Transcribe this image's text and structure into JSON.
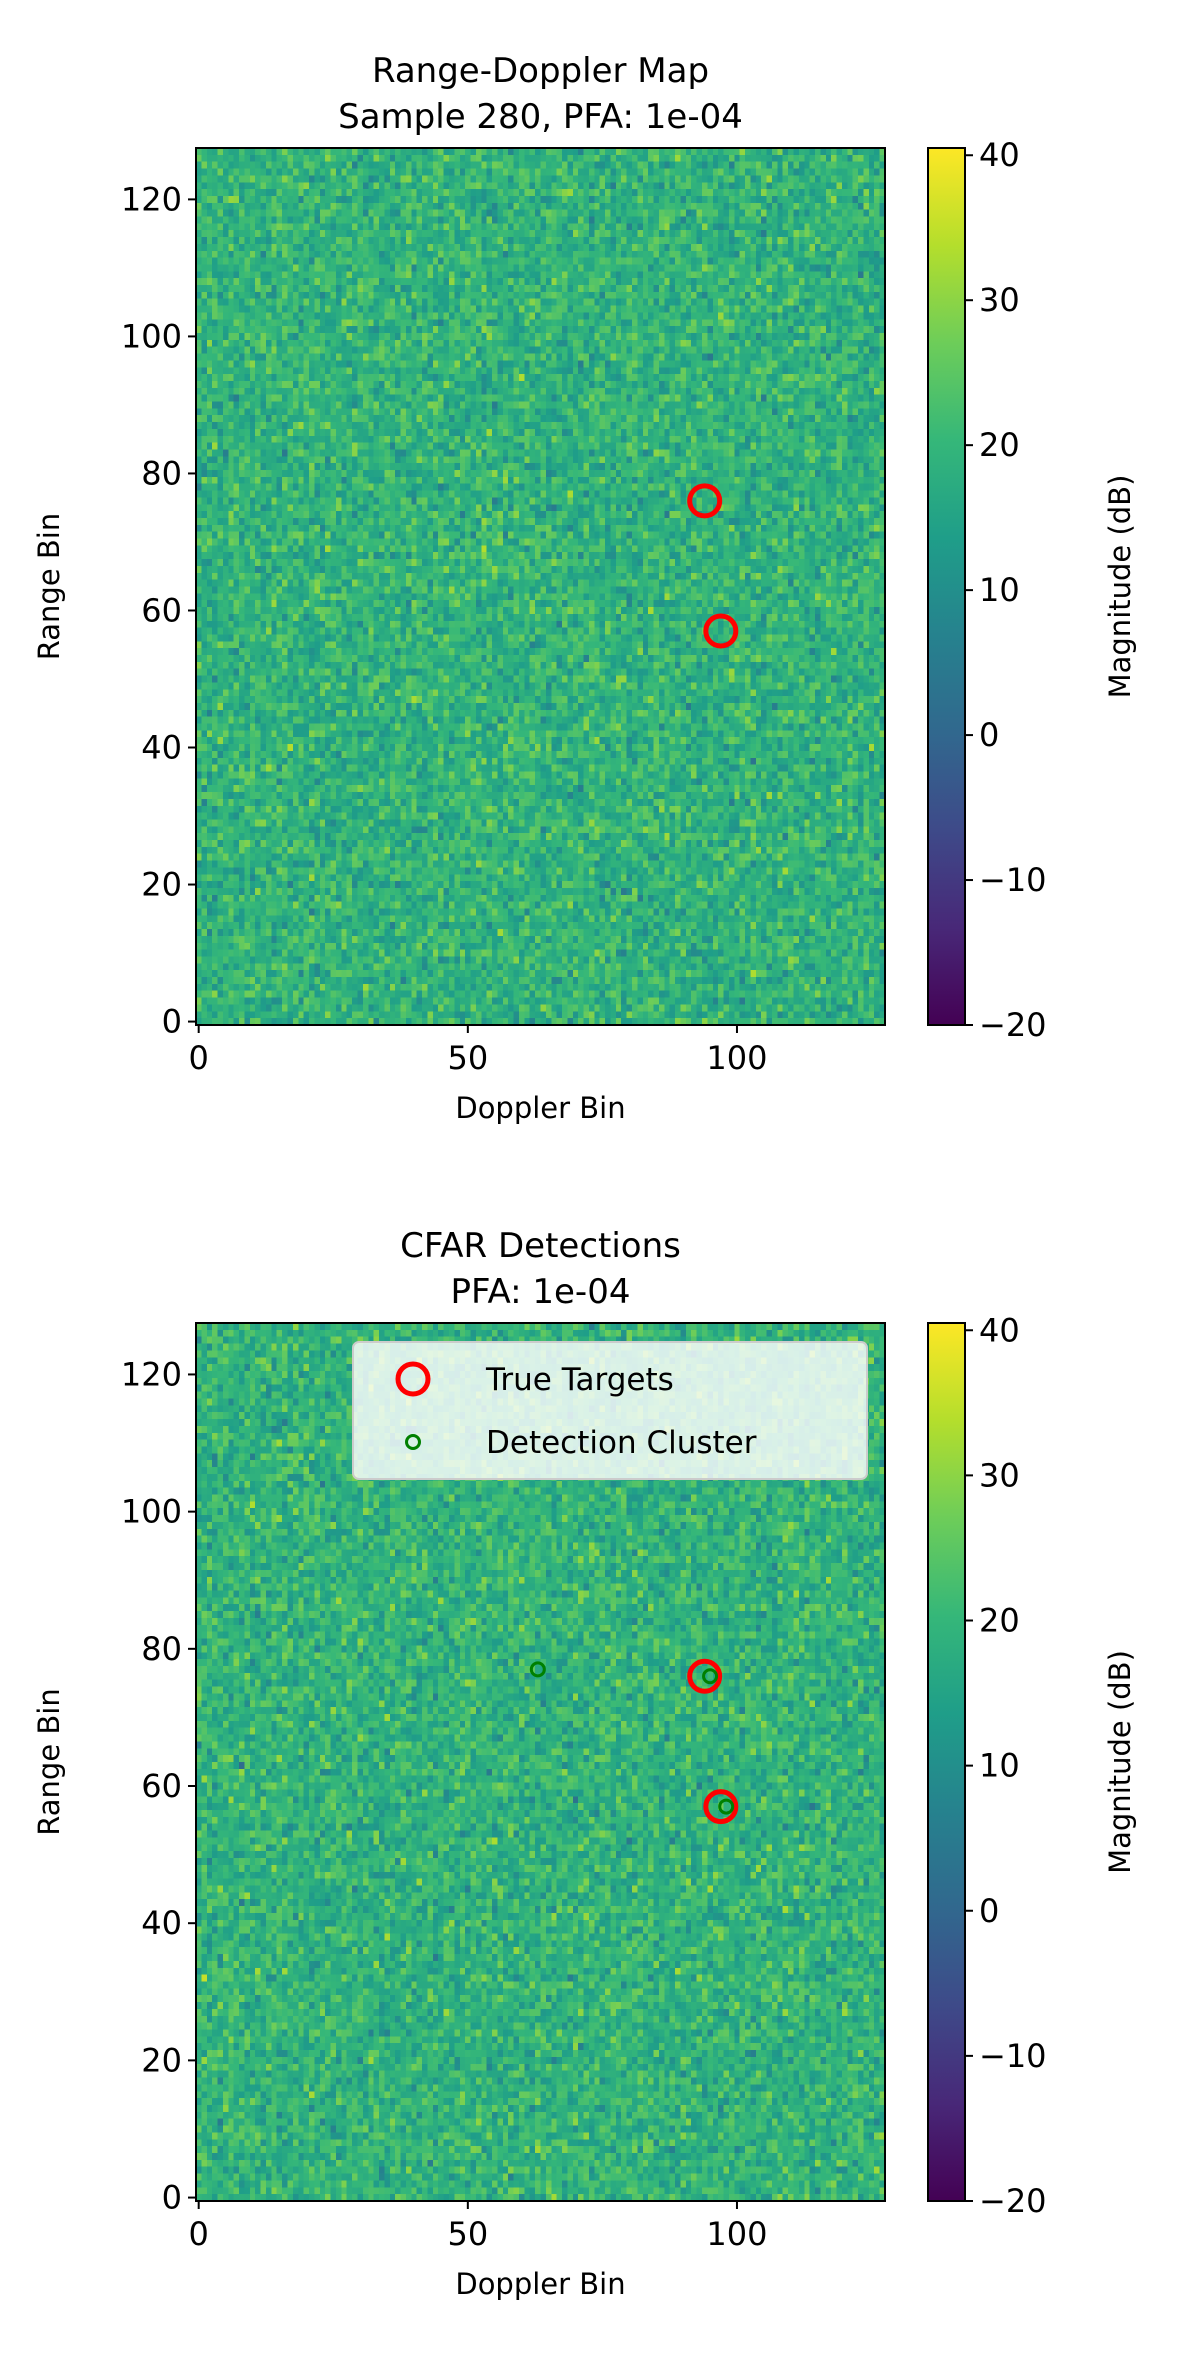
{
  "figure": {
    "colormap": "viridis",
    "colorbar": {
      "label": "Magnitude (dB)",
      "vmin": -20,
      "vmax": 40.5,
      "ticks": [
        "−20",
        "−10",
        "0",
        "10",
        "20",
        "30",
        "40"
      ]
    },
    "axis_ticks": [
      "0",
      "50",
      "100"
    ],
    "y_ticks": [
      "0",
      "20",
      "40",
      "60",
      "80",
      "100",
      "120"
    ]
  },
  "chart_data": [
    {
      "type": "heatmap",
      "title": "Range-Doppler Map\nSample 280, PFA: 1e-04",
      "title_lines": [
        "Range-Doppler Map",
        "Sample 280, PFA: 1e-04"
      ],
      "xlabel": "Doppler Bin",
      "ylabel": "Range Bin",
      "xlim": [
        -0.5,
        127.5
      ],
      "ylim": [
        -0.5,
        127.5
      ],
      "grid": false,
      "heatmap": {
        "shape": [
          128,
          128
        ],
        "approx_mean_db": 19,
        "approx_std_db": 4.5,
        "color_range_db": [
          -20,
          40.5
        ]
      },
      "series": [
        {
          "name": "True Targets",
          "marker": "open-circle",
          "color": "#ff0000",
          "points": [
            {
              "x": 94,
              "y": 76
            },
            {
              "x": 97,
              "y": 57
            }
          ]
        }
      ]
    },
    {
      "type": "heatmap",
      "title": "CFAR Detections\nPFA: 1e-04",
      "title_lines": [
        "CFAR Detections",
        "PFA: 1e-04"
      ],
      "xlabel": "Doppler Bin",
      "ylabel": "Range Bin",
      "xlim": [
        -0.5,
        127.5
      ],
      "ylim": [
        -0.5,
        127.5
      ],
      "grid": false,
      "legend": {
        "position": "upper right",
        "entries": [
          "True Targets",
          "Detection Cluster"
        ]
      },
      "heatmap": {
        "shape": [
          128,
          128
        ],
        "approx_mean_db": 19,
        "approx_std_db": 4.5,
        "color_range_db": [
          -20,
          40.5
        ]
      },
      "series": [
        {
          "name": "True Targets",
          "marker": "open-circle",
          "color": "#ff0000",
          "points": [
            {
              "x": 94,
              "y": 76
            },
            {
              "x": 97,
              "y": 57
            }
          ]
        },
        {
          "name": "Detection Cluster",
          "marker": "open-circle-small",
          "color": "#008000",
          "points": [
            {
              "x": 63,
              "y": 77
            },
            {
              "x": 95,
              "y": 76
            },
            {
              "x": 98,
              "y": 57
            }
          ]
        }
      ]
    }
  ]
}
